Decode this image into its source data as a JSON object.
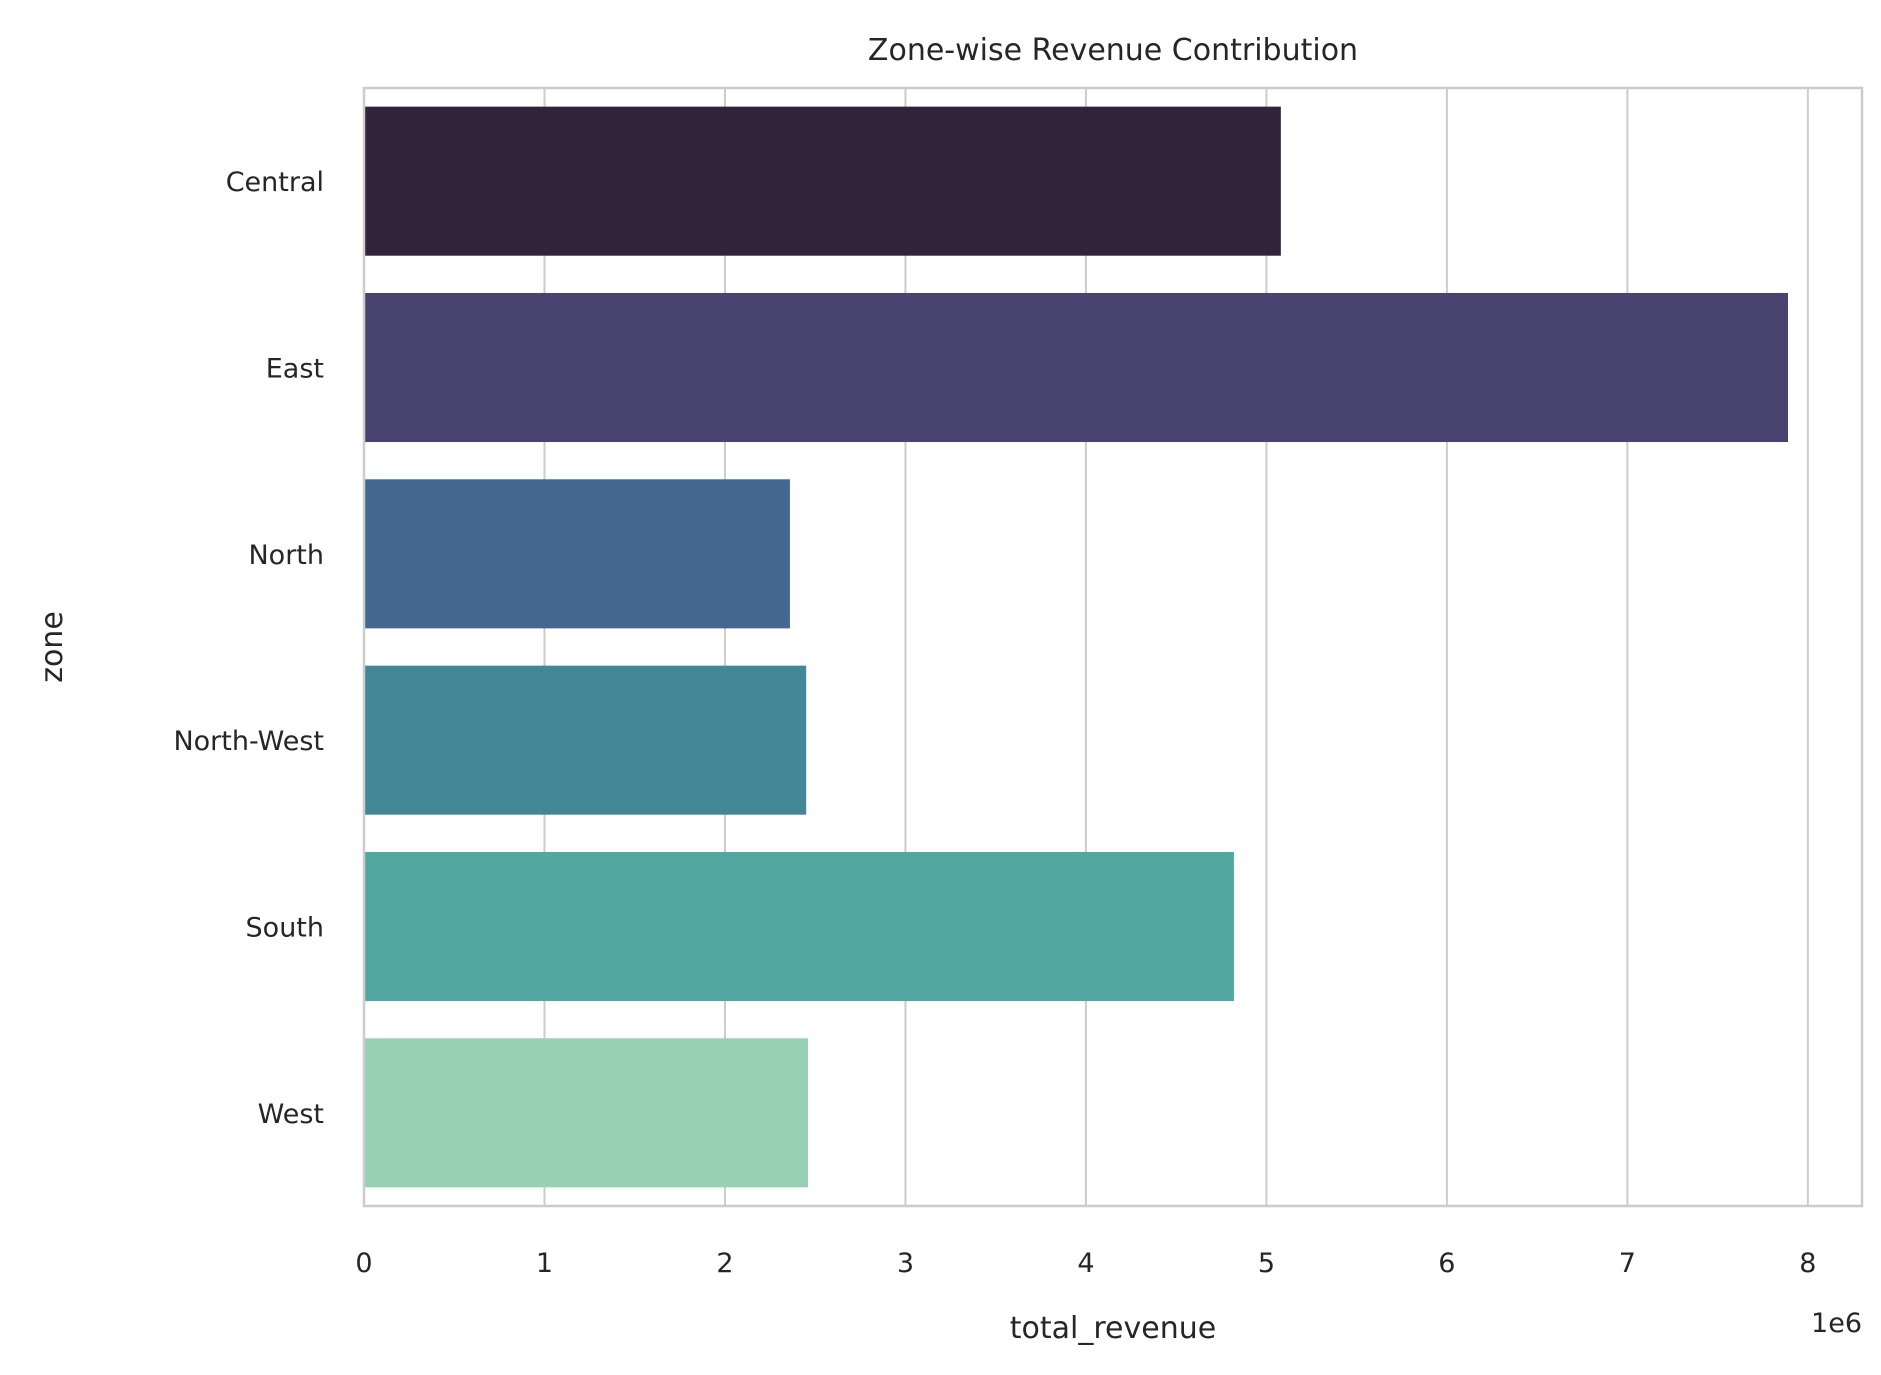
{
  "chart_data": {
    "type": "bar",
    "orientation": "horizontal",
    "title": "Zone-wise Revenue Contribution",
    "xlabel": "total_revenue",
    "ylabel": "zone",
    "x_offset_text": "1e6",
    "categories": [
      "Central",
      "East",
      "North",
      "North-West",
      "South",
      "West"
    ],
    "values": [
      5080000,
      7890000,
      2360000,
      2450000,
      4820000,
      2460000
    ],
    "colors": [
      "#30233a",
      "#48446f",
      "#436790",
      "#438797",
      "#52a7a0",
      "#97d0b2"
    ],
    "xlim": [
      0,
      8300000
    ],
    "x_ticks": [
      0,
      1000000,
      2000000,
      3000000,
      4000000,
      5000000,
      6000000,
      7000000,
      8000000
    ],
    "x_tick_labels": [
      "0",
      "1",
      "2",
      "3",
      "4",
      "5",
      "6",
      "7",
      "8"
    ],
    "grid": true,
    "legend": "none"
  }
}
